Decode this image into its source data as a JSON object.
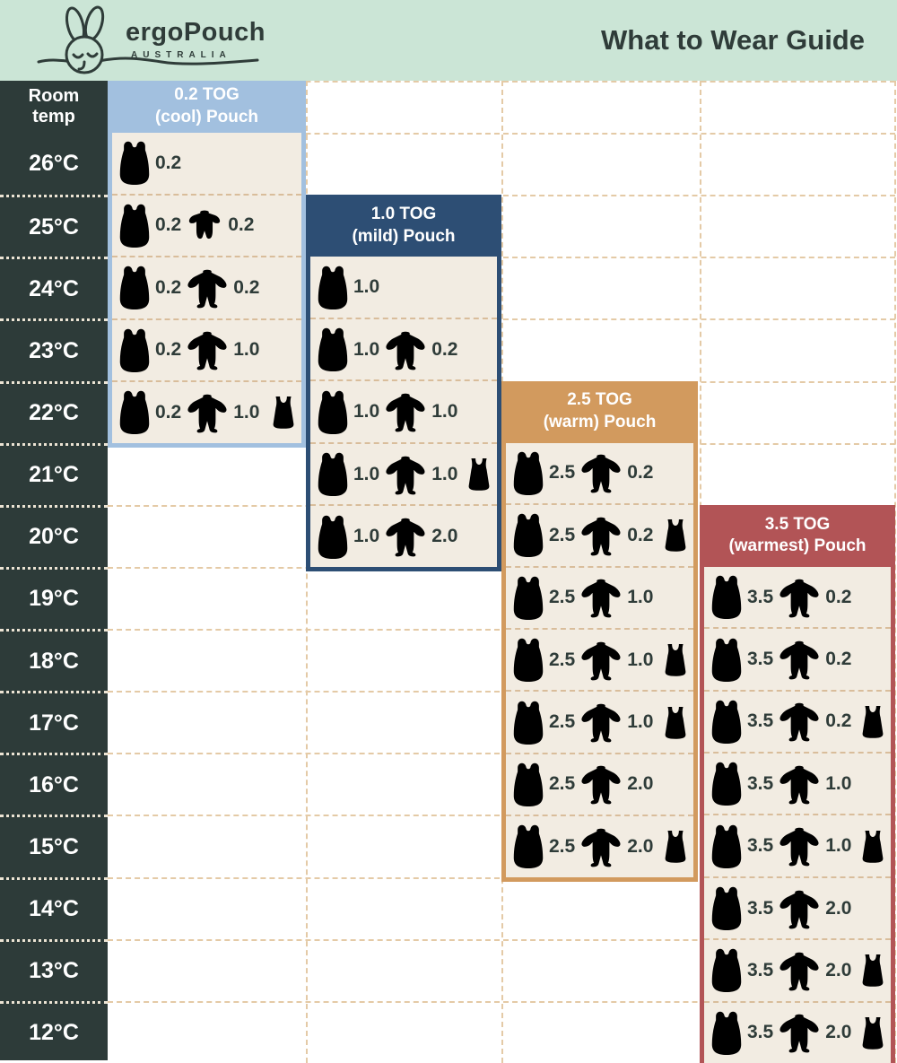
{
  "header": {
    "brand": "ergoPouch",
    "brand_sub": "AUSTRALIA",
    "title": "What to Wear Guide"
  },
  "table": {
    "row_header_line1": "Room",
    "row_header_line2": "temp",
    "temps": [
      "26°C",
      "25°C",
      "24°C",
      "23°C",
      "22°C",
      "21°C",
      "20°C",
      "19°C",
      "18°C",
      "17°C",
      "16°C",
      "15°C",
      "14°C",
      "13°C",
      "12°C"
    ]
  },
  "colors": {
    "mint": "#cbe5d6",
    "dark": "#2d3b39",
    "text_dark": "#2f3c39",
    "cream": "#f2ece2",
    "grid_line": "#e4caa6",
    "panel_line": "#d9bd9b",
    "temp_dot": "#ece4d4",
    "garments": {
      "blue": {
        "fill": "#a8c7e9",
        "stroke": "#26496f"
      },
      "navy": {
        "fill": "#2a4c73",
        "stroke": "#14304d"
      },
      "tan": {
        "fill": "#d29c62",
        "stroke": "#7c5224"
      },
      "red": {
        "fill": "#b25456",
        "stroke": "#6f2f32"
      },
      "white": {
        "fill": "#ffffff",
        "stroke": "#3c3c3c"
      }
    }
  },
  "chart_data": {
    "type": "table",
    "title": "What to Wear Guide",
    "row_header": "Room temp",
    "temperatures_c": [
      26,
      25,
      24,
      23,
      22,
      21,
      20,
      19,
      18,
      17,
      16,
      15,
      14,
      13,
      12
    ],
    "panels": [
      {
        "label": "0.2 TOG",
        "sublabel": "(cool) Pouch",
        "tog": "0.2",
        "color": "#a2c0df",
        "col": 0,
        "first_row": 0,
        "header_in_band": true,
        "rows": [
          {
            "temp_c": 26,
            "items": [
              {
                "type": "pouch",
                "color": "blue",
                "tog": "0.2"
              }
            ]
          },
          {
            "temp_c": 25,
            "items": [
              {
                "type": "pouch",
                "color": "blue",
                "tog": "0.2"
              },
              {
                "type": "romper",
                "color": "blue",
                "tog": "0.2"
              }
            ]
          },
          {
            "temp_c": 24,
            "items": [
              {
                "type": "pouch",
                "color": "blue",
                "tog": "0.2"
              },
              {
                "type": "onesie",
                "color": "blue",
                "tog": "0.2"
              }
            ]
          },
          {
            "temp_c": 23,
            "items": [
              {
                "type": "pouch",
                "color": "blue",
                "tog": "0.2"
              },
              {
                "type": "onesie",
                "color": "navy",
                "tog": "1.0"
              }
            ]
          },
          {
            "temp_c": 22,
            "items": [
              {
                "type": "pouch",
                "color": "blue",
                "tog": "0.2"
              },
              {
                "type": "onesie",
                "color": "navy",
                "tog": "1.0"
              },
              {
                "type": "singlet",
                "color": "white"
              }
            ]
          }
        ]
      },
      {
        "label": "1.0 TOG",
        "sublabel": "(mild) Pouch",
        "tog": "1.0",
        "color": "#2d4e74",
        "col": 1,
        "first_row": 2,
        "header_in_band": false,
        "rows": [
          {
            "temp_c": 24,
            "items": [
              {
                "type": "pouch",
                "color": "navy",
                "tog": "1.0"
              }
            ]
          },
          {
            "temp_c": 23,
            "items": [
              {
                "type": "pouch",
                "color": "navy",
                "tog": "1.0"
              },
              {
                "type": "onesie",
                "color": "blue",
                "tog": "0.2"
              }
            ]
          },
          {
            "temp_c": 22,
            "items": [
              {
                "type": "pouch",
                "color": "navy",
                "tog": "1.0"
              },
              {
                "type": "onesie",
                "color": "navy",
                "tog": "1.0"
              }
            ]
          },
          {
            "temp_c": 21,
            "items": [
              {
                "type": "pouch",
                "color": "navy",
                "tog": "1.0"
              },
              {
                "type": "onesie",
                "color": "navy",
                "tog": "1.0"
              },
              {
                "type": "singlet",
                "color": "white"
              }
            ]
          },
          {
            "temp_c": 20,
            "items": [
              {
                "type": "pouch",
                "color": "navy",
                "tog": "1.0"
              },
              {
                "type": "onesie",
                "color": "tan",
                "tog": "2.0"
              }
            ]
          }
        ]
      },
      {
        "label": "2.5 TOG",
        "sublabel": "(warm) Pouch",
        "tog": "2.5",
        "color": "#d29a5e",
        "col": 2,
        "first_row": 5,
        "header_in_band": false,
        "rows": [
          {
            "temp_c": 21,
            "items": [
              {
                "type": "pouch",
                "color": "tan",
                "tog": "2.5"
              },
              {
                "type": "onesie",
                "color": "blue",
                "tog": "0.2"
              }
            ]
          },
          {
            "temp_c": 20,
            "items": [
              {
                "type": "pouch",
                "color": "tan",
                "tog": "2.5"
              },
              {
                "type": "onesie",
                "color": "blue",
                "tog": "0.2"
              },
              {
                "type": "singlet",
                "color": "white"
              }
            ]
          },
          {
            "temp_c": 19,
            "items": [
              {
                "type": "pouch",
                "color": "tan",
                "tog": "2.5"
              },
              {
                "type": "onesie",
                "color": "navy",
                "tog": "1.0"
              }
            ]
          },
          {
            "temp_c": 18,
            "items": [
              {
                "type": "pouch",
                "color": "tan",
                "tog": "2.5"
              },
              {
                "type": "onesie",
                "color": "navy",
                "tog": "1.0"
              },
              {
                "type": "singlet",
                "color": "white"
              }
            ]
          },
          {
            "temp_c": 17,
            "items": [
              {
                "type": "pouch",
                "color": "tan",
                "tog": "2.5"
              },
              {
                "type": "onesie",
                "color": "navy",
                "tog": "1.0"
              },
              {
                "type": "singlet",
                "color": "white"
              }
            ]
          },
          {
            "temp_c": 16,
            "items": [
              {
                "type": "pouch",
                "color": "tan",
                "tog": "2.5"
              },
              {
                "type": "onesie",
                "color": "tan",
                "tog": "2.0"
              }
            ]
          },
          {
            "temp_c": 15,
            "items": [
              {
                "type": "pouch",
                "color": "tan",
                "tog": "2.5"
              },
              {
                "type": "onesie",
                "color": "tan",
                "tog": "2.0"
              },
              {
                "type": "singlet",
                "color": "white"
              }
            ]
          }
        ]
      },
      {
        "label": "3.5 TOG",
        "sublabel": "(warmest) Pouch",
        "tog": "3.5",
        "color": "#b25456",
        "col": 3,
        "first_row": 7,
        "header_in_band": false,
        "rows": [
          {
            "temp_c": 19,
            "items": [
              {
                "type": "pouch",
                "color": "red",
                "tog": "3.5"
              },
              {
                "type": "onesie",
                "color": "blue",
                "tog": "0.2"
              }
            ]
          },
          {
            "temp_c": 18,
            "items": [
              {
                "type": "pouch",
                "color": "red",
                "tog": "3.5"
              },
              {
                "type": "onesie",
                "color": "blue",
                "tog": "0.2"
              }
            ]
          },
          {
            "temp_c": 17,
            "items": [
              {
                "type": "pouch",
                "color": "red",
                "tog": "3.5"
              },
              {
                "type": "onesie",
                "color": "blue",
                "tog": "0.2"
              },
              {
                "type": "singlet",
                "color": "white"
              }
            ]
          },
          {
            "temp_c": 16,
            "items": [
              {
                "type": "pouch",
                "color": "red",
                "tog": "3.5"
              },
              {
                "type": "onesie",
                "color": "navy",
                "tog": "1.0"
              }
            ]
          },
          {
            "temp_c": 15,
            "items": [
              {
                "type": "pouch",
                "color": "red",
                "tog": "3.5"
              },
              {
                "type": "onesie",
                "color": "navy",
                "tog": "1.0"
              },
              {
                "type": "singlet",
                "color": "white"
              }
            ]
          },
          {
            "temp_c": 14,
            "items": [
              {
                "type": "pouch",
                "color": "red",
                "tog": "3.5"
              },
              {
                "type": "onesie",
                "color": "tan",
                "tog": "2.0"
              }
            ]
          },
          {
            "temp_c": 13,
            "items": [
              {
                "type": "pouch",
                "color": "red",
                "tog": "3.5"
              },
              {
                "type": "onesie",
                "color": "tan",
                "tog": "2.0"
              },
              {
                "type": "singlet",
                "color": "white"
              }
            ]
          },
          {
            "temp_c": 12,
            "items": [
              {
                "type": "pouch",
                "color": "red",
                "tog": "3.5"
              },
              {
                "type": "onesie",
                "color": "tan",
                "tog": "2.0"
              },
              {
                "type": "singlet",
                "color": "white"
              }
            ]
          }
        ]
      }
    ]
  }
}
